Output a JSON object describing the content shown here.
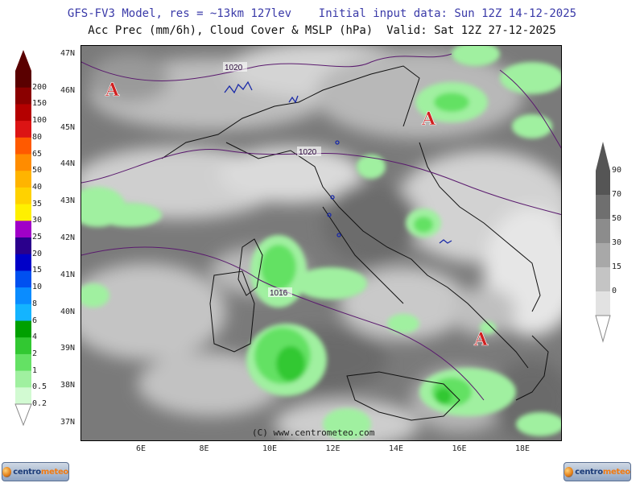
{
  "header": {
    "line1": "GFS-FV3 Model, res = ~13km 127lev    Initial input data: Sun 12Z 14-12-2025",
    "line2": "Acc Prec (mm/6h), Cloud Cover & MSLP (hPa)  Valid: Sat 12Z 27-12-2025"
  },
  "map": {
    "lat_labels": [
      "47N",
      "46N",
      "45N",
      "44N",
      "43N",
      "42N",
      "41N",
      "40N",
      "39N",
      "38N",
      "37N"
    ],
    "lon_labels": [
      "6E",
      "8E",
      "10E",
      "12E",
      "14E",
      "16E",
      "18E"
    ],
    "isobars": [
      "1020",
      "1020",
      "1016"
    ],
    "high_pressure_marker": "A",
    "copyright": "(C) www.centrometeo.com"
  },
  "precip_legend": {
    "labels": [
      "200",
      "150",
      "100",
      "80",
      "65",
      "50",
      "40",
      "35",
      "30",
      "25",
      "20",
      "15",
      "10",
      "8",
      "6",
      "4",
      "2",
      "1",
      "0.5",
      "0.2"
    ],
    "colors": [
      "#5a0000",
      "#8a0000",
      "#b40000",
      "#dc1414",
      "#ff5a00",
      "#ff8c00",
      "#ffb400",
      "#ffd200",
      "#fff000",
      "#a000c8",
      "#2a008c",
      "#0000c8",
      "#0050f0",
      "#0a8cff",
      "#14b4ff",
      "#00a000",
      "#32c832",
      "#64e164",
      "#a0f0a0",
      "#d2fad2"
    ]
  },
  "cloud_legend": {
    "labels": [
      "90",
      "70",
      "50",
      "30",
      "15",
      "0"
    ],
    "colors": [
      "#555555",
      "#6f6f6f",
      "#8c8c8c",
      "#a8a8a8",
      "#c4c4c4",
      "#e2e2e2"
    ]
  },
  "logo": {
    "text_a": "centro",
    "text_b": "meteo"
  }
}
